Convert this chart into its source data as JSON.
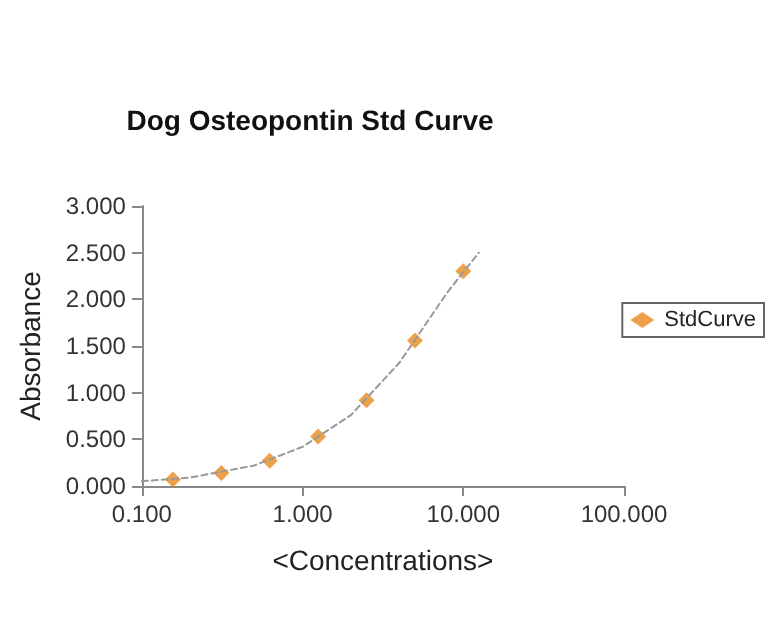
{
  "chart_data": {
    "type": "scatter",
    "title": "Dog Osteopontin Std Curve",
    "xlabel": "<Concentrations>",
    "ylabel": "Absorbance",
    "log": "x",
    "xlim": [
      0.1,
      100
    ],
    "xticks": [
      {
        "value": 0.1,
        "label": "0.100"
      },
      {
        "value": 1,
        "label": "1.000"
      },
      {
        "value": 10,
        "label": "10.000"
      },
      {
        "value": 100,
        "label": "100.000"
      }
    ],
    "ylim": [
      0,
      3
    ],
    "yticks": [
      {
        "value": 0,
        "label": "0.000"
      },
      {
        "value": 0.5,
        "label": "0.500"
      },
      {
        "value": 1,
        "label": "1.000"
      },
      {
        "value": 1.5,
        "label": "1.500"
      },
      {
        "value": 2,
        "label": "2.000"
      },
      {
        "value": 2.5,
        "label": "2.500"
      },
      {
        "value": 3,
        "label": "3.000"
      }
    ],
    "grid": false,
    "legend": "right",
    "marker": "diamond",
    "series": [
      {
        "name": "StdCurve",
        "color": "#e8891e",
        "x": [
          0.156,
          0.3125,
          0.625,
          1.25,
          2.5,
          5,
          10
        ],
        "values": [
          0.07,
          0.14,
          0.27,
          0.53,
          0.92,
          1.56,
          2.3
        ]
      },
      {
        "type": "line",
        "color": "#999999",
        "line_style": "dashed",
        "marker": "none",
        "x": [
          0.1,
          0.2,
          0.5,
          1,
          2,
          4,
          8,
          12.5
        ],
        "values": [
          0.05,
          0.09,
          0.22,
          0.42,
          0.76,
          1.32,
          2.08,
          2.5
        ]
      }
    ]
  }
}
